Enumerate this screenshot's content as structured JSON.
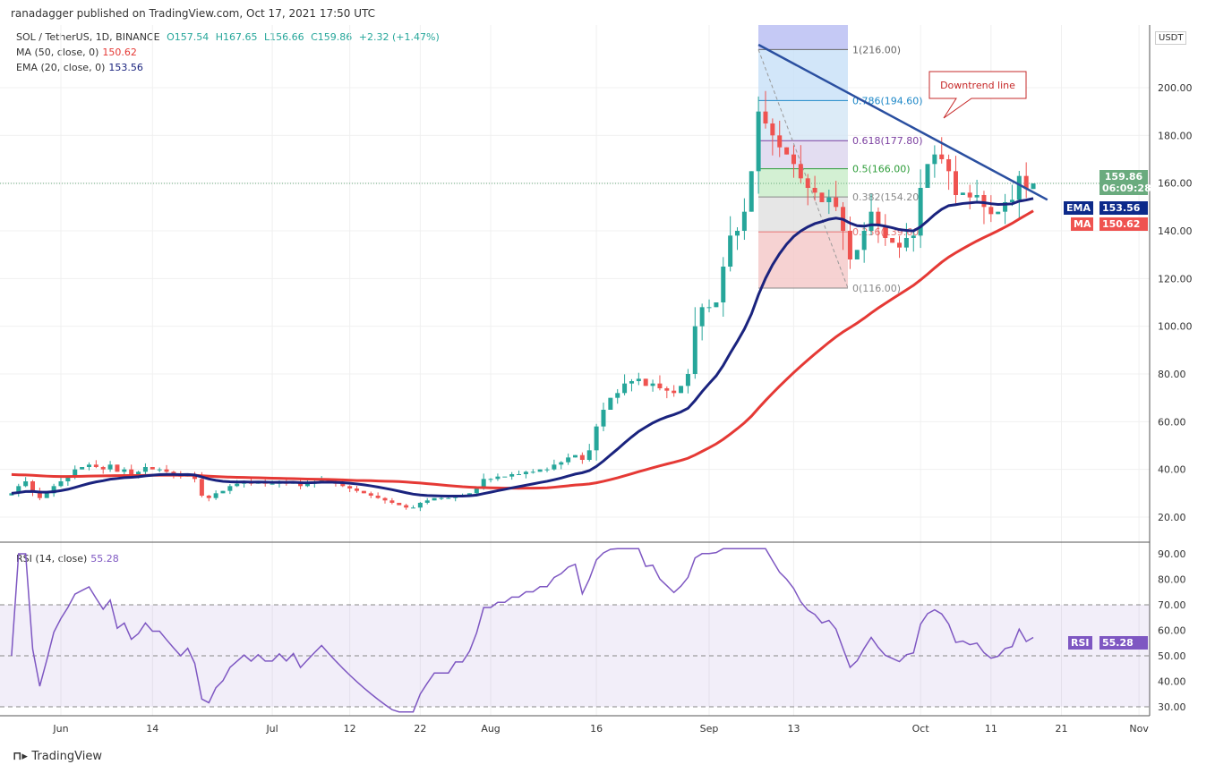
{
  "header": {
    "published": "ranadagger published on TradingView.com, Oct 17, 2021 17:50 UTC"
  },
  "legend": {
    "symbol": "SOL / TetherUS, 1D, BINANCE",
    "open": "O157.54",
    "high": "H167.65",
    "low": "L156.66",
    "close": "C159.86",
    "change": "+2.32 (+1.47%)",
    "ma_label": "MA (50, close, 0)",
    "ma_value": "150.62",
    "ema_label": "EMA (20, close, 0)",
    "ema_value": "153.56",
    "rsi_label": "RSI (14, close)",
    "rsi_value": "55.28"
  },
  "axis": {
    "currency": "USDT",
    "price_badge": "159.86",
    "countdown": "06:09:28",
    "ema_tag": "EMA",
    "ema_val": "153.56",
    "ma_tag": "MA",
    "ma_val": "150.62",
    "rsi_tag": "RSI",
    "rsi_val": "55.28"
  },
  "annotation": {
    "downtrend": "Downtrend line"
  },
  "brand": "TradingView",
  "colors": {
    "up": "#26a69a",
    "down": "#ef5350",
    "ema": "#1a237e",
    "ma": "#e53935",
    "rsi": "#7e57c2"
  },
  "chart_data": {
    "type": "candlestick",
    "start_date": "2021-05-25",
    "closes": [
      30,
      33,
      35,
      31,
      28,
      30,
      33,
      35,
      37,
      40,
      41,
      42,
      41,
      40,
      42,
      39,
      40,
      38,
      39,
      41,
      40,
      40,
      39,
      38,
      37,
      38,
      36,
      29,
      28,
      30,
      31,
      33,
      34,
      35,
      34,
      35,
      34,
      34,
      35,
      34,
      35,
      33,
      34,
      35,
      36,
      35,
      34,
      33,
      32,
      31,
      30,
      29,
      28,
      27,
      26,
      25,
      24,
      24,
      26,
      27,
      28,
      28,
      28,
      29,
      29,
      30,
      32,
      36,
      36,
      37,
      37,
      38,
      38,
      39,
      39,
      40,
      40,
      42,
      43,
      45,
      46,
      44,
      48,
      58,
      65,
      70,
      72,
      76,
      77,
      78,
      75,
      76,
      74,
      73,
      72,
      75,
      80,
      100,
      108,
      108,
      110,
      125,
      138,
      140,
      148,
      165,
      190,
      185,
      180,
      175,
      172,
      168,
      162,
      158,
      156,
      152,
      154,
      150,
      140,
      128,
      132,
      140,
      148,
      142,
      137,
      135,
      133,
      137,
      138,
      158,
      168,
      172,
      170,
      165,
      155,
      156,
      154,
      155,
      150,
      147,
      148,
      152,
      153,
      163,
      157.54,
      159.86
    ],
    "price_ticks": [
      20,
      40,
      60,
      80,
      100,
      120,
      140,
      160,
      180,
      200
    ],
    "price_tick_labels": [
      "20.00",
      "40.00",
      "60.00",
      "80.00",
      "100.00",
      "120.00",
      "140.00",
      "160.00",
      "180.00",
      "200.00"
    ],
    "rsi_ticks": [
      30,
      40,
      50,
      60,
      70,
      80,
      90
    ],
    "rsi_tick_labels": [
      "30.00",
      "40.00",
      "50.00",
      "60.00",
      "70.00",
      "80.00",
      "90.00"
    ],
    "x_labels": [
      {
        "day": 7,
        "label": "Jun"
      },
      {
        "day": 20,
        "label": "14"
      },
      {
        "day": 37,
        "label": "Jul"
      },
      {
        "day": 48,
        "label": "12"
      },
      {
        "day": 58,
        "label": "22"
      },
      {
        "day": 68,
        "label": "Aug"
      },
      {
        "day": 83,
        "label": "16"
      },
      {
        "day": 99,
        "label": "Sep"
      },
      {
        "day": 111,
        "label": "13"
      },
      {
        "day": 129,
        "label": "Oct"
      },
      {
        "day": 139,
        "label": "11"
      },
      {
        "day": 149,
        "label": "21"
      },
      {
        "day": 160,
        "label": "Nov"
      }
    ],
    "fib": {
      "low": 116,
      "high": 216,
      "levels": [
        {
          "r": 0,
          "label": "0(116.00)"
        },
        {
          "r": 0.236,
          "label": "0.236(139.60)"
        },
        {
          "r": 0.382,
          "label": "0.382(154.20)"
        },
        {
          "r": 0.5,
          "label": "0.5(166.00)"
        },
        {
          "r": 0.618,
          "label": "0.618(177.80)"
        },
        {
          "r": 0.786,
          "label": "0.786(194.60)"
        },
        {
          "r": 1,
          "label": "1(216.00)"
        }
      ]
    },
    "trendline": {
      "from": {
        "day": 106,
        "price": 218
      },
      "to": {
        "day": 147,
        "price": 153
      }
    },
    "ema_period": 20,
    "ma_period": 50,
    "rsi_period": 14
  }
}
